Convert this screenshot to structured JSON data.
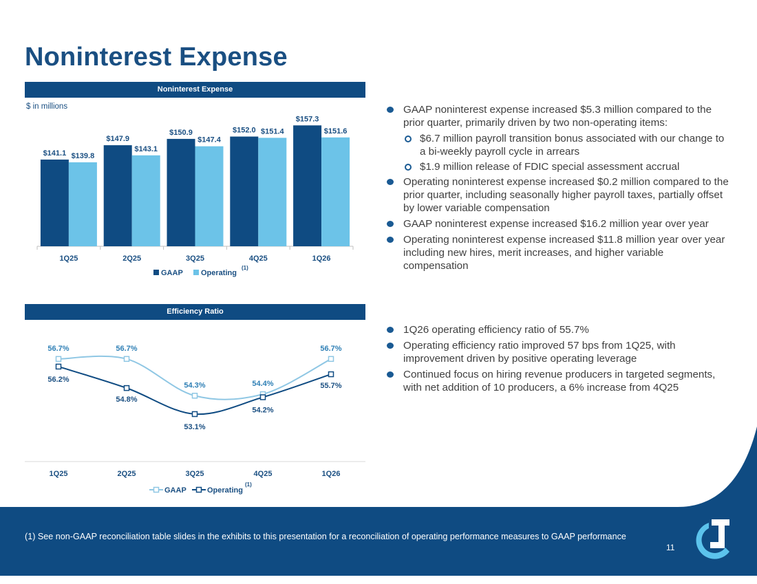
{
  "slide": {
    "title": "Noninterest Expense",
    "page_number": "11"
  },
  "chart1_header": "Noninterest Expense",
  "chart2_header": "Efficiency Ratio",
  "units_label": "$ in millions",
  "colors": {
    "navy": "#0f4b82",
    "light_blue": "#6cc3e8",
    "line_light": "#8fc7e4",
    "text_blue": "#1a4f82"
  },
  "chart_data": [
    {
      "type": "bar",
      "title": "Noninterest Expense",
      "ylabel": "$ in millions",
      "categories": [
        "1Q25",
        "2Q25",
        "3Q25",
        "4Q25",
        "1Q26"
      ],
      "series": [
        {
          "name": "GAAP",
          "values": [
            141.1,
            147.9,
            150.9,
            152.0,
            157.3
          ],
          "labels": [
            "$141.1",
            "$147.9",
            "$150.9",
            "$152.0",
            "$157.3"
          ]
        },
        {
          "name": "Operating",
          "values": [
            139.8,
            143.1,
            147.4,
            151.4,
            151.6
          ],
          "labels": [
            "$139.8",
            "$143.1",
            "$147.4",
            "$151.4",
            "$151.6"
          ]
        }
      ],
      "ylim": [
        100,
        160
      ],
      "legend": "bottom",
      "legend_footnote": "(1)"
    },
    {
      "type": "line",
      "title": "Efficiency Ratio",
      "categories": [
        "1Q25",
        "2Q25",
        "3Q25",
        "4Q25",
        "1Q26"
      ],
      "series": [
        {
          "name": "GAAP",
          "values": [
            56.7,
            56.7,
            54.3,
            54.4,
            56.7
          ],
          "labels": [
            "56.7%",
            "56.7%",
            "54.3%",
            "54.4%",
            "56.7%"
          ]
        },
        {
          "name": "Operating",
          "values": [
            56.2,
            54.8,
            53.1,
            54.2,
            55.7
          ],
          "labels": [
            "56.2%",
            "54.8%",
            "53.1%",
            "54.2%",
            "55.7%"
          ]
        }
      ],
      "ylim": [
        50,
        57.5
      ],
      "legend": "bottom",
      "legend_footnote": "(1)"
    }
  ],
  "bullets_top": [
    {
      "level": 1,
      "text": "GAAP noninterest expense increased $5.3 million compared to the prior quarter, primarily driven by two non-operating items:"
    },
    {
      "level": 2,
      "text": "$6.7 million payroll transition bonus associated with our change to a bi-weekly payroll cycle in arrears"
    },
    {
      "level": 2,
      "text": "$1.9 million release of FDIC special assessment accrual"
    },
    {
      "level": 1,
      "text": "Operating noninterest expense increased $0.2 million compared to the prior quarter, including seasonally higher payroll taxes, partially offset by lower variable compensation"
    },
    {
      "level": 1,
      "text": "GAAP noninterest expense increased $16.2 million year over year"
    },
    {
      "level": 1,
      "text": "Operating noninterest expense increased $11.8 million year over year including new hires, merit increases, and higher variable compensation"
    }
  ],
  "bullets_bottom": [
    {
      "level": 1,
      "text": "1Q26 operating efficiency ratio of 55.7%"
    },
    {
      "level": 1,
      "text": "Operating efficiency ratio improved 57 bps from 1Q25, with improvement driven by positive operating leverage"
    },
    {
      "level": 1,
      "text": "Continued focus on hiring revenue producers in targeted segments, with net addition of 10 producers, a 6% increase from 4Q25"
    }
  ],
  "footnote": "(1)  See non-GAAP reconciliation table slides in the exhibits to this presentation for a reconciliation of operating performance measures to GAAP performance"
}
